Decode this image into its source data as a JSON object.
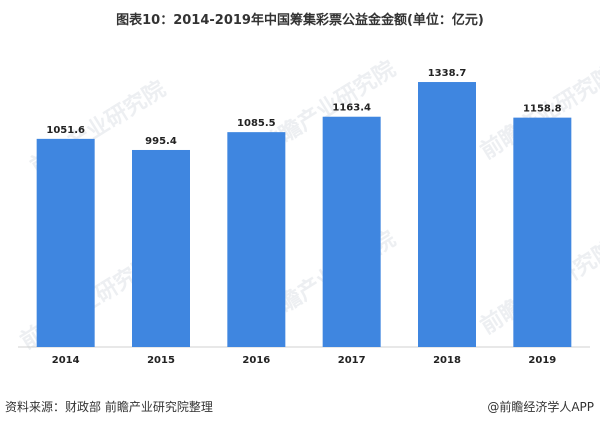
{
  "title": "图表10：2014-2019年中国筹集彩票公益金金额(单位：亿元)",
  "chart_data": {
    "type": "bar",
    "title": "图表10：2014-2019年中国筹集彩票公益金金额(单位：亿元)",
    "categories": [
      "2014",
      "2015",
      "2016",
      "2017",
      "2018",
      "2019"
    ],
    "values": [
      1051.6,
      995.4,
      1085.5,
      1163.4,
      1338.7,
      1158.8
    ],
    "value_labels": [
      "1051.6",
      "995.4",
      "1085.5",
      "1163.4",
      "1338.7",
      "1158.8"
    ],
    "xlabel": "",
    "ylabel": "",
    "ylim": [
      0,
      1450
    ],
    "grid": false,
    "legend": "none",
    "bar_color": "#3f86e0"
  },
  "watermark": "前瞻产业研究院",
  "footer": {
    "source": "资料来源：财政部   前瞻产业研究院整理",
    "brand": "@前瞻经济学人APP"
  }
}
